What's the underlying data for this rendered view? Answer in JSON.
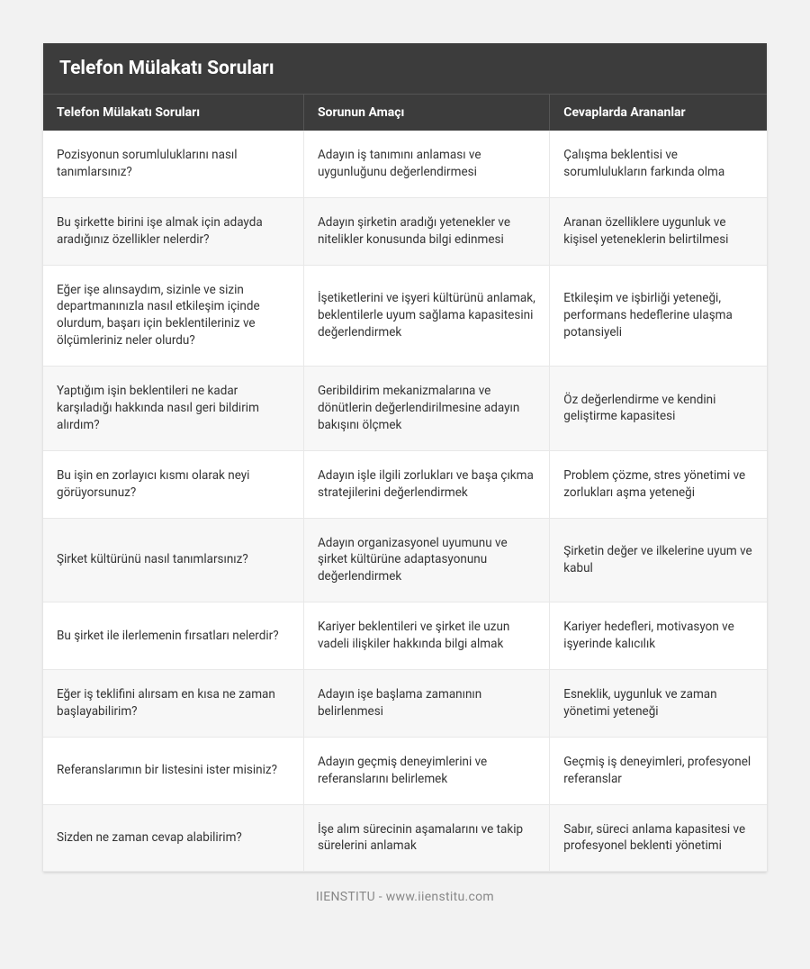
{
  "title": "Telefon Mülakatı Soruları",
  "columns": [
    {
      "label": "Telefon Mülakatı Soruları",
      "width": "36%"
    },
    {
      "label": "Sorunun Amaçı",
      "width": "34%"
    },
    {
      "label": "Cevaplarda Arananlar",
      "width": "30%"
    }
  ],
  "rows": [
    [
      "Pozisyonun sorumluluklarını nasıl tanımlarsınız?",
      "Adayın iş tanımını anlaması ve uygunluğunu değerlendirmesi",
      "Çalışma beklentisi ve sorumlulukların farkında olma"
    ],
    [
      "Bu şirkette birini işe almak için adayda aradığınız özellikler nelerdir?",
      "Adayın şirketin aradığı yetenekler ve nitelikler konusunda bilgi edinmesi",
      "Aranan özelliklere uygunluk ve kişisel yeteneklerin belirtilmesi"
    ],
    [
      "Eğer işe alınsaydım, sizinle ve sizin departmanınızla nasıl etkileşim içinde olurdum, başarı için beklentileriniz ve ölçümleriniz neler olurdu?",
      "İşetiketlerini ve işyeri kültürünü anlamak, beklentilerle uyum sağlama kapasitesini değerlendirmek",
      "Etkileşim ve işbirliği yeteneği, performans hedeflerine ulaşma potansiyeli"
    ],
    [
      "Yaptığım işin beklentileri ne kadar karşıladığı hakkında nasıl geri bildirim alırdım?",
      "Geribildirim mekanizmalarına ve dönütlerin değerlendirilmesine adayın bakışını ölçmek",
      "Öz değerlendirme ve kendini geliştirme kapasitesi"
    ],
    [
      "Bu işin en zorlayıcı kısmı olarak neyi görüyorsunuz?",
      "Adayın işle ilgili zorlukları ve başa çıkma stratejilerini değerlendirmek",
      "Problem çözme, stres yönetimi ve zorlukları aşma yeteneği"
    ],
    [
      "Şirket kültürünü nasıl tanımlarsınız?",
      "Adayın organizasyonel uyumunu ve şirket kültürüne adaptasyonunu değerlendirmek",
      "Şirketin değer ve ilkelerine uyum ve kabul"
    ],
    [
      "Bu şirket ile ilerlemenin fırsatları nelerdir?",
      "Kariyer beklentileri ve şirket ile uzun vadeli ilişkiler hakkında bilgi almak",
      "Kariyer hedefleri, motivasyon ve işyerinde kalıcılık"
    ],
    [
      "Eğer iş teklifini alırsam en kısa ne zaman başlayabilirim?",
      "Adayın işe başlama zamanının belirlenmesi",
      "Esneklik, uygunluk ve zaman yönetimi yeteneği"
    ],
    [
      "Referanslarımın bir listesini ister misiniz?",
      "Adayın geçmiş deneyimlerini ve referanslarını belirlemek",
      "Geçmiş iş deneyimleri, profesyonel referanslar"
    ],
    [
      "Sizden ne zaman cevap alabilirim?",
      "İşe alım sürecinin aşamalarını ve takip sürelerini anlamak",
      "Sabır, süreci anlama kapasitesi ve profesyonel beklenti yönetimi"
    ]
  ],
  "footer": "IIENSTITU - www.iienstitu.com",
  "styling": {
    "page_bg": "#f2f2f2",
    "header_bg": "#3c3c3c",
    "header_text": "#ffffff",
    "row_alt_bg": "#f7f7f7",
    "body_text": "#333333",
    "border_color": "#e8e8e8",
    "footer_text": "#888888",
    "title_fontsize": 21,
    "header_fontsize": 14,
    "cell_fontsize": 13.5
  }
}
